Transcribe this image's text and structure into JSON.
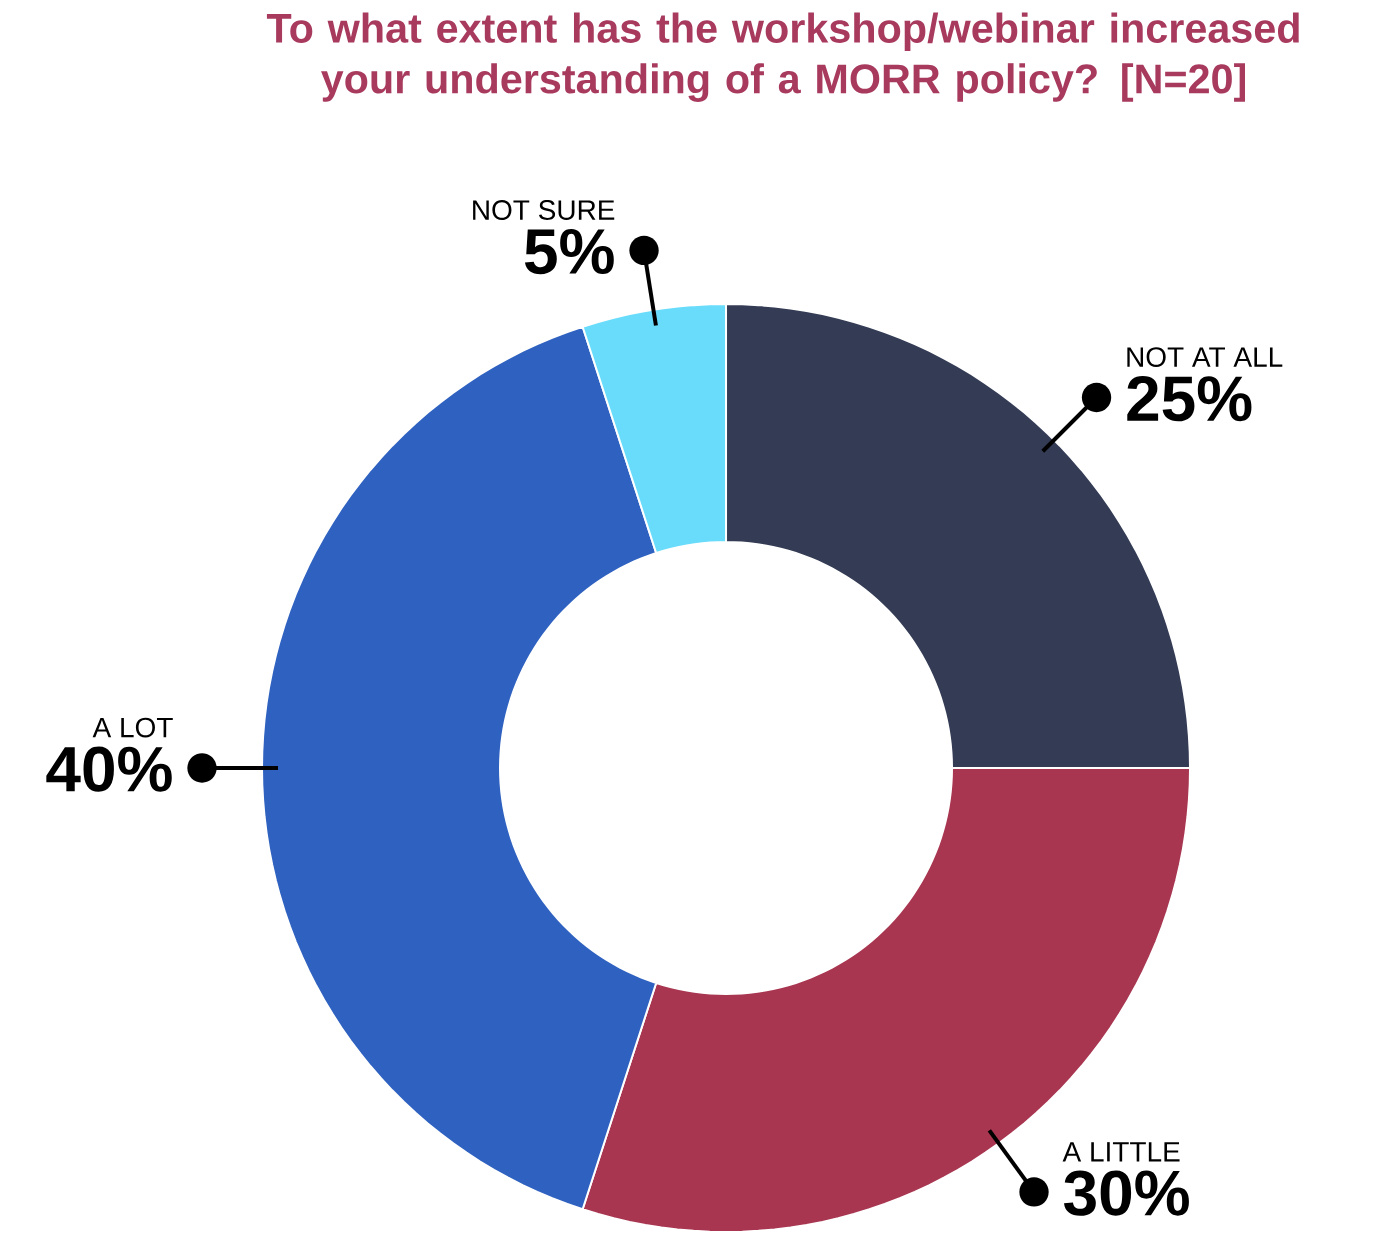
{
  "chart_data": {
    "type": "donut",
    "title": "To what extent has the workshop/webinar increased your understanding of a MORR policy? [N=20]",
    "categories": [
      "NOT AT ALL",
      "A LITTLE",
      "A LOT",
      "NOT SURE"
    ],
    "values": [
      25,
      30,
      40,
      5
    ],
    "colors": [
      "#343c55",
      "#a83650",
      "#2f62c0",
      "#6adcfb"
    ],
    "value_labels": [
      "25%",
      "30%",
      "40%",
      "5%"
    ]
  }
}
